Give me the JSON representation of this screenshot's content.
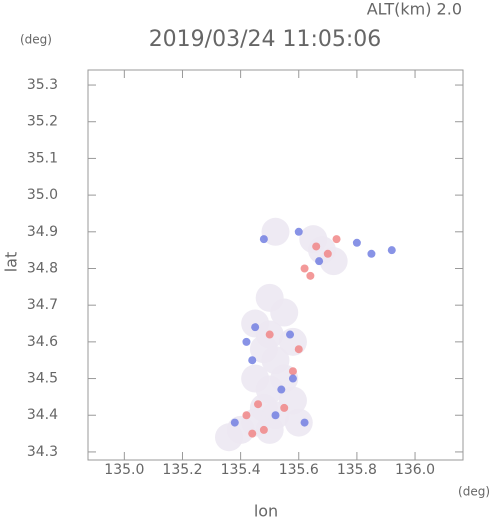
{
  "chart_data": {
    "type": "scatter",
    "title": "2019/03/24 11:05:06",
    "subtitle": "ALT(km) 2.0",
    "y_unit": "(deg)",
    "x_unit": "(deg)",
    "x_label": "lon",
    "y_label": "lat",
    "xlim": [
      134.875,
      136.165
    ],
    "ylim": [
      34.278,
      35.341
    ],
    "xticks": [
      {
        "value": 135.0,
        "label": "135.0"
      },
      135.2,
      135.4,
      135.6,
      135.8,
      {
        "value": 136.0,
        "label": "136.0"
      }
    ],
    "yticks": [
      35.3,
      35.2,
      35.1,
      {
        "value": 35.0,
        "label": "35.0"
      },
      34.9,
      34.8,
      34.7,
      34.6,
      34.5,
      34.4,
      34.3
    ],
    "series": [
      {
        "color": "#ece8f2",
        "x": [
          135.45,
          135.5,
          135.55,
          135.48,
          135.52,
          135.58,
          135.45,
          135.5,
          135.55,
          135.48,
          135.52,
          135.58,
          135.6,
          135.45,
          135.5,
          135.4,
          135.36,
          135.68,
          135.72,
          135.65,
          135.52,
          135.5
        ],
        "values": [
          34.65,
          34.62,
          34.68,
          34.58,
          34.55,
          34.6,
          34.5,
          34.47,
          34.5,
          34.42,
          34.4,
          34.44,
          34.38,
          34.38,
          34.36,
          34.36,
          34.34,
          34.85,
          34.82,
          34.88,
          34.9,
          34.72
        ]
      },
      {
        "color": "#f08080",
        "x": [
          135.62,
          135.7,
          135.66,
          135.42,
          135.46,
          135.55,
          135.58,
          135.5,
          135.6,
          135.73,
          135.64,
          135.48,
          135.44
        ],
        "values": [
          34.8,
          34.84,
          34.86,
          34.4,
          34.43,
          34.42,
          34.52,
          34.62,
          34.58,
          34.88,
          34.78,
          34.36,
          34.35
        ]
      },
      {
        "color": "#6a78e0",
        "x": [
          135.48,
          135.42,
          135.45,
          135.54,
          135.58,
          135.52,
          135.62,
          135.8,
          135.85,
          135.6,
          135.38,
          135.92,
          135.67,
          135.44,
          135.57
        ],
        "values": [
          34.88,
          34.6,
          34.64,
          34.47,
          34.5,
          34.4,
          34.38,
          34.87,
          34.84,
          34.9,
          34.38,
          34.85,
          34.82,
          34.55,
          34.62
        ]
      }
    ]
  }
}
